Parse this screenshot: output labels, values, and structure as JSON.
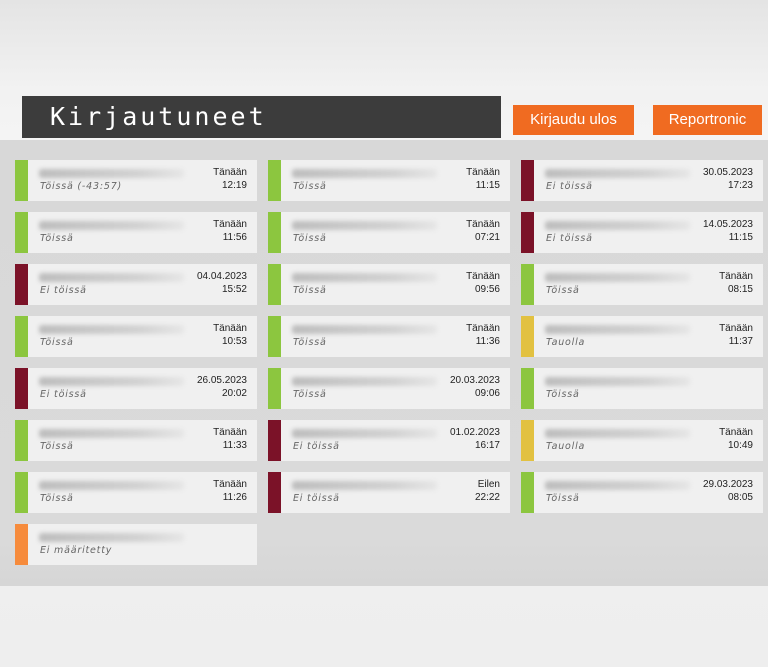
{
  "header": {
    "title": "Kirjautuneet",
    "logout_label": "Kirjaudu ulos",
    "report_label": "Reportronic"
  },
  "status_colors": {
    "working": "#8cc63f",
    "notworking": "#7b1228",
    "break": "#e2c141",
    "undefined": "#f68b3c"
  },
  "columns": [
    [
      {
        "status": "working",
        "status_text": "Töissä (-43:57)",
        "date": "Tänään",
        "time": "12:19"
      },
      {
        "status": "working",
        "status_text": "Töissä",
        "date": "Tänään",
        "time": "11:56"
      },
      {
        "status": "notworking",
        "status_text": "Ei töissä",
        "date": "04.04.2023",
        "time": "15:52"
      },
      {
        "status": "working",
        "status_text": "Töissä",
        "date": "Tänään",
        "time": "10:53"
      },
      {
        "status": "notworking",
        "status_text": "Ei töissä",
        "date": "26.05.2023",
        "time": "20:02"
      },
      {
        "status": "working",
        "status_text": "Töissä",
        "date": "Tänään",
        "time": "11:33"
      },
      {
        "status": "working",
        "status_text": "Töissä",
        "date": "Tänään",
        "time": "11:26"
      },
      {
        "status": "undefined",
        "status_text": "Ei määritetty",
        "date": "",
        "time": ""
      }
    ],
    [
      {
        "status": "working",
        "status_text": "Töissä",
        "date": "Tänään",
        "time": "11:15"
      },
      {
        "status": "working",
        "status_text": "Töissä",
        "date": "Tänään",
        "time": "07:21"
      },
      {
        "status": "working",
        "status_text": "Töissä",
        "date": "Tänään",
        "time": "09:56"
      },
      {
        "status": "working",
        "status_text": "Töissä",
        "date": "Tänään",
        "time": "11:36"
      },
      {
        "status": "working",
        "status_text": "Töissä",
        "date": "20.03.2023",
        "time": "09:06"
      },
      {
        "status": "notworking",
        "status_text": "Ei töissä",
        "date": "01.02.2023",
        "time": "16:17"
      },
      {
        "status": "notworking",
        "status_text": "Ei töissä",
        "date": "Eilen",
        "time": "22:22"
      }
    ],
    [
      {
        "status": "notworking",
        "status_text": "Ei töissä",
        "date": "30.05.2023",
        "time": "17:23"
      },
      {
        "status": "notworking",
        "status_text": "Ei töissä",
        "date": "14.05.2023",
        "time": "11:15"
      },
      {
        "status": "working",
        "status_text": "Töissä",
        "date": "Tänään",
        "time": "08:15"
      },
      {
        "status": "break",
        "status_text": "Tauolla",
        "date": "Tänään",
        "time": "11:37"
      },
      {
        "status": "working",
        "status_text": "Töissä",
        "date": "",
        "time": ""
      },
      {
        "status": "break",
        "status_text": "Tauolla",
        "date": "Tänään",
        "time": "10:49"
      },
      {
        "status": "working",
        "status_text": "Töissä",
        "date": "29.03.2023",
        "time": "08:05"
      }
    ]
  ]
}
